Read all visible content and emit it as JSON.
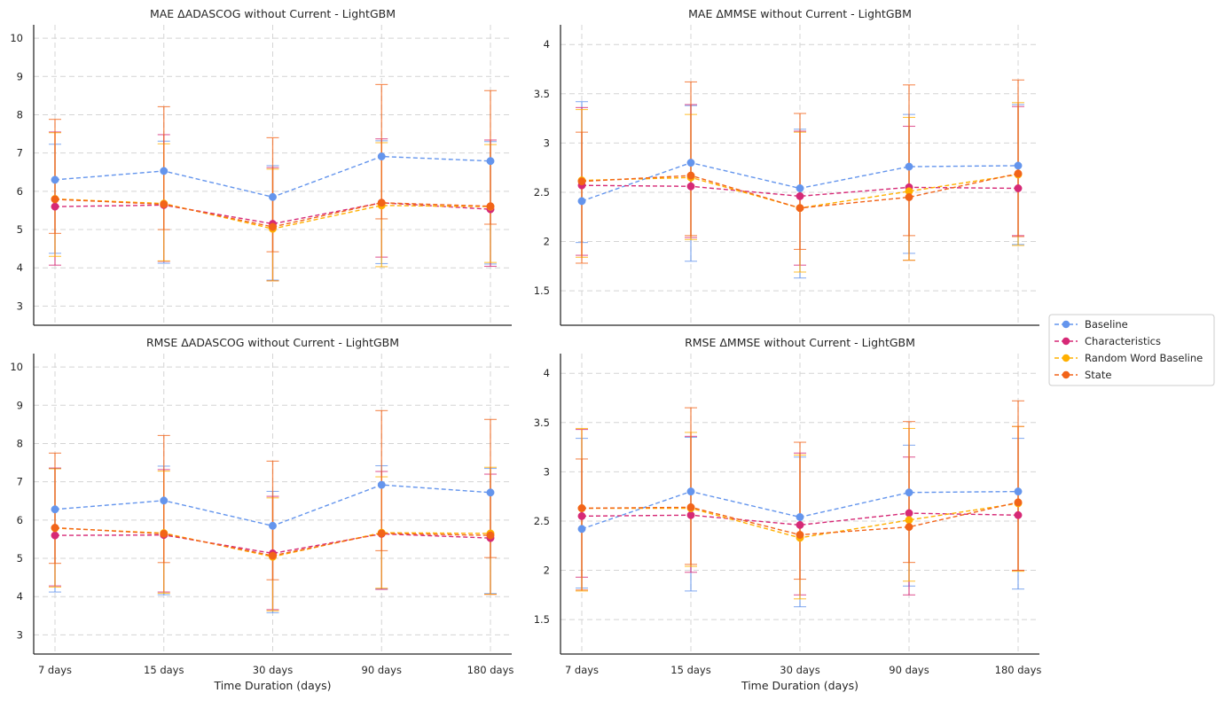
{
  "chart_data": {
    "type": "line",
    "categories": [
      "7 days",
      "15 days",
      "30 days",
      "90 days",
      "180 days"
    ],
    "xlabel": "Time Duration (days)",
    "colors": {
      "Baseline": "#6495ED",
      "Characteristics": "#D62976",
      "Random Word Baseline": "#FFB000",
      "State": "#F26419"
    },
    "legend": {
      "placement": "center-right",
      "entries": [
        "Baseline",
        "Characteristics",
        "Random Word Baseline",
        "State"
      ]
    },
    "panels": [
      {
        "title": "MAE ΔADASCOG without Current - LightGBM",
        "ylim": [
          2.5,
          10.35
        ],
        "yticks": [
          3,
          4,
          5,
          6,
          7,
          8,
          9,
          10
        ],
        "series": [
          {
            "name": "Baseline",
            "values": [
              6.3,
              6.53,
              5.85,
              6.91,
              6.79
            ],
            "err_low": [
              4.38,
              4.12,
              3.68,
              4.11,
              4.1
            ],
            "err_high": [
              7.23,
              7.31,
              6.67,
              7.32,
              7.3
            ]
          },
          {
            "name": "Characteristics",
            "values": [
              5.6,
              5.64,
              5.15,
              5.7,
              5.53
            ],
            "err_low": [
              4.07,
              4.17,
              3.66,
              4.28,
              4.04
            ],
            "err_high": [
              7.55,
              7.48,
              6.62,
              7.37,
              7.34
            ]
          },
          {
            "name": "Random Word Baseline",
            "values": [
              5.8,
              5.68,
              5.02,
              5.63,
              5.6
            ],
            "err_low": [
              4.3,
              4.18,
              3.66,
              4.03,
              4.14
            ],
            "err_high": [
              7.53,
              7.24,
              6.58,
              7.27,
              7.22
            ]
          },
          {
            "name": "State",
            "values": [
              5.79,
              5.66,
              5.07,
              5.7,
              5.61
            ],
            "err_low": [
              4.9,
              5.0,
              4.42,
              5.28,
              5.14
            ],
            "err_high": [
              7.88,
              8.21,
              7.4,
              8.79,
              8.63
            ]
          }
        ]
      },
      {
        "title": "MAE ΔMMSE without Current - LightGBM",
        "ylim": [
          1.15,
          4.2
        ],
        "yticks": [
          1.5,
          2.0,
          2.5,
          3.0,
          3.5,
          4.0
        ],
        "series": [
          {
            "name": "Baseline",
            "values": [
              2.41,
              2.8,
              2.54,
              2.76,
              2.77
            ],
            "err_low": [
              1.99,
              1.8,
              1.63,
              1.88,
              1.97
            ],
            "err_high": [
              3.42,
              3.38,
              3.14,
              3.29,
              3.39
            ]
          },
          {
            "name": "Characteristics",
            "values": [
              2.57,
              2.56,
              2.46,
              2.55,
              2.54
            ],
            "err_low": [
              1.86,
              2.04,
              1.76,
              1.81,
              2.06
            ],
            "err_high": [
              3.36,
              3.39,
              3.12,
              3.17,
              3.37
            ]
          },
          {
            "name": "Random Word Baseline",
            "values": [
              2.62,
              2.65,
              2.34,
              2.51,
              2.68
            ],
            "err_low": [
              1.84,
              2.02,
              1.69,
              1.81,
              1.96
            ],
            "err_high": [
              3.34,
              3.29,
              3.11,
              3.26,
              3.41
            ]
          },
          {
            "name": "State",
            "values": [
              2.61,
              2.67,
              2.34,
              2.45,
              2.69
            ],
            "err_low": [
              1.78,
              2.06,
              1.92,
              2.06,
              2.05
            ],
            "err_high": [
              3.11,
              3.62,
              3.3,
              3.59,
              3.64
            ]
          }
        ]
      },
      {
        "title": "RMSE ΔADASCOG without Current - LightGBM",
        "ylim": [
          2.5,
          10.35
        ],
        "yticks": [
          3,
          4,
          5,
          6,
          7,
          8,
          9,
          10
        ],
        "series": [
          {
            "name": "Baseline",
            "values": [
              6.28,
              6.51,
              5.85,
              6.92,
              6.72
            ],
            "err_low": [
              4.12,
              4.05,
              3.58,
              4.2,
              4.08
            ],
            "err_high": [
              7.35,
              7.41,
              6.75,
              7.42,
              7.35
            ]
          },
          {
            "name": "Characteristics",
            "values": [
              5.6,
              5.61,
              5.13,
              5.64,
              5.53
            ],
            "err_low": [
              4.28,
              4.12,
              3.66,
              4.19,
              4.06
            ],
            "err_high": [
              7.36,
              7.32,
              6.62,
              7.27,
              7.2
            ]
          },
          {
            "name": "Random Word Baseline",
            "values": [
              5.79,
              5.66,
              5.04,
              5.67,
              5.65
            ],
            "err_low": [
              4.25,
              4.09,
              3.63,
              4.22,
              4.06
            ],
            "err_high": [
              7.34,
              7.28,
              6.58,
              7.13,
              7.38
            ]
          },
          {
            "name": "State",
            "values": [
              5.8,
              5.64,
              5.07,
              5.65,
              5.6
            ],
            "err_low": [
              4.87,
              4.89,
              4.44,
              5.2,
              5.02
            ],
            "err_high": [
              7.75,
              8.21,
              7.54,
              8.86,
              8.63
            ]
          }
        ]
      },
      {
        "title": "RMSE ΔMMSE without Current - LightGBM",
        "ylim": [
          1.15,
          4.2
        ],
        "yticks": [
          1.5,
          2.0,
          2.5,
          3.0,
          3.5,
          4.0
        ],
        "series": [
          {
            "name": "Baseline",
            "values": [
              2.42,
              2.8,
              2.54,
              2.79,
              2.8
            ],
            "err_low": [
              1.82,
              1.79,
              1.63,
              1.84,
              1.81
            ],
            "err_high": [
              3.34,
              3.35,
              3.15,
              3.27,
              3.34
            ]
          },
          {
            "name": "Characteristics",
            "values": [
              2.55,
              2.56,
              2.46,
              2.58,
              2.56
            ],
            "err_low": [
              1.93,
              1.98,
              1.75,
              1.75,
              2.0
            ],
            "err_high": [
              3.43,
              3.36,
              3.19,
              3.15,
              3.46
            ]
          },
          {
            "name": "Random Word Baseline",
            "values": [
              2.63,
              2.63,
              2.33,
              2.51,
              2.68
            ],
            "err_low": [
              1.79,
              2.04,
              1.71,
              1.89,
              1.99
            ],
            "err_high": [
              3.44,
              3.4,
              3.17,
              3.44,
              3.46
            ]
          },
          {
            "name": "State",
            "values": [
              2.63,
              2.64,
              2.36,
              2.44,
              2.69
            ],
            "err_low": [
              1.8,
              2.06,
              1.91,
              2.08,
              2.0
            ],
            "err_high": [
              3.13,
              3.65,
              3.3,
              3.51,
              3.72
            ]
          }
        ]
      }
    ]
  }
}
